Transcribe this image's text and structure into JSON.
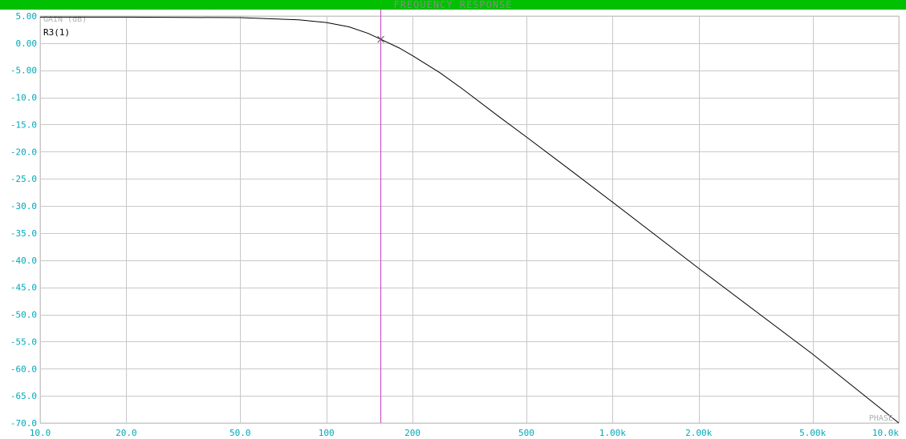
{
  "window": {
    "title": "FREQUENCY RESPONSE"
  },
  "colors": {
    "titlebar": "#00c000",
    "tick_label": "#00a8b8",
    "grid": "#c8c8c8",
    "curve": "#000000",
    "cursor": "#c040c0",
    "faint_label": "#b0b0b0"
  },
  "chart_data": {
    "type": "line",
    "title": "FREQUENCY RESPONSE",
    "ylabel": "GAIN (dB)",
    "xscale": "log",
    "xlim": [
      10,
      10000
    ],
    "ylim": [
      -70,
      5
    ],
    "grid": true,
    "x_ticks": [
      10,
      20,
      50,
      100,
      200,
      500,
      1000,
      2000,
      5000,
      10000
    ],
    "x_tick_labels": [
      "10.0",
      "20.0",
      "50.0",
      "100",
      "200",
      "500",
      "1.00k",
      "2.00k",
      "5.00k",
      "10.0k"
    ],
    "y_ticks": [
      5,
      0,
      -5,
      -10,
      -15,
      -20,
      -25,
      -30,
      -35,
      -40,
      -45,
      -50,
      -55,
      -60,
      -65,
      -70
    ],
    "y_tick_labels": [
      "5.00",
      "0.00",
      "-5.00",
      "-10.0",
      "-15.0",
      "-20.0",
      "-25.0",
      "-30.0",
      "-35.0",
      "-40.0",
      "-45.0",
      "-50.0",
      "-55.0",
      "-60.0",
      "-65.0",
      "-70.0"
    ],
    "series": [
      {
        "name": "R3(1)",
        "x": [
          10,
          20,
          50,
          80,
          100,
          120,
          140,
          155,
          180,
          200,
          250,
          300,
          400,
          500,
          700,
          1000,
          2000,
          5000,
          10000
        ],
        "y": [
          4.8,
          4.8,
          4.7,
          4.3,
          3.8,
          3.0,
          1.8,
          0.7,
          -0.9,
          -2.3,
          -5.5,
          -8.5,
          -13.5,
          -17.3,
          -23.1,
          -29.3,
          -41.5,
          -57.3,
          -70.0
        ]
      }
    ],
    "cursor": {
      "x": 155,
      "y": 0.7
    },
    "corner_label": "PHASE"
  }
}
